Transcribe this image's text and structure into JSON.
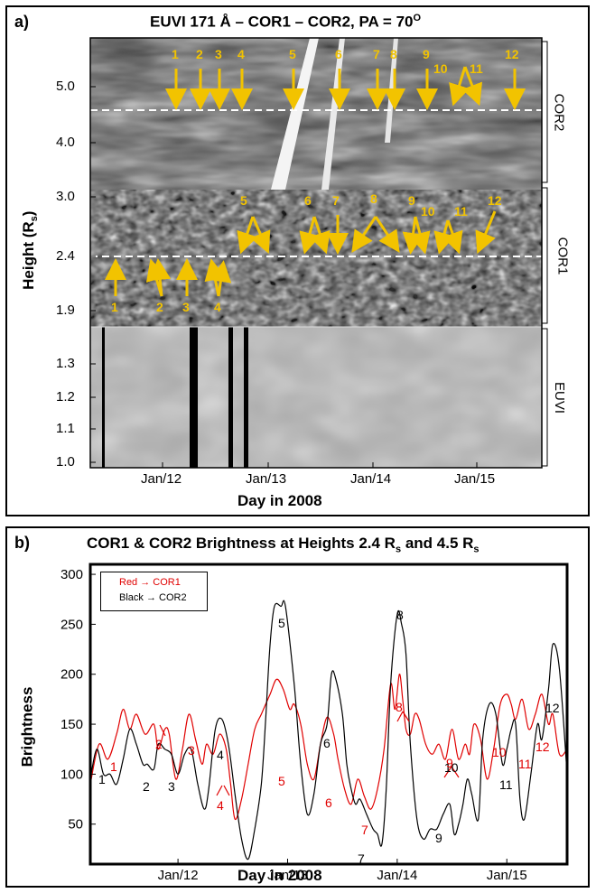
{
  "panel_a": {
    "label": "a)",
    "title_main": "EUVI 171 Å – COR1 – COR2, PA = 70",
    "title_sup": "O",
    "ylabel_main": "Height (R",
    "ylabel_sub": "s",
    "ylabel_close": ")",
    "xlabel": "Day in 2008",
    "yticks": [
      "5.0",
      "4.0",
      "3.0",
      "2.4",
      "1.9",
      "1.3",
      "1.2",
      "1.1",
      "1.0"
    ],
    "xticks": [
      "Jan/12",
      "Jan/13",
      "Jan/14",
      "Jan/15"
    ],
    "instruments": [
      "COR2",
      "COR1",
      "EUVI"
    ],
    "cor2_labels": [
      "1",
      "2",
      "3",
      "4",
      "5",
      "6",
      "7",
      "8",
      "9",
      "10",
      "11",
      "12"
    ],
    "cor1_upper_labels": [
      "5",
      "6",
      "7",
      "8",
      "9",
      "10",
      "11",
      "12"
    ],
    "cor1_lower_labels": [
      "1",
      "2",
      "3",
      "4"
    ],
    "annotation_color": "#f2c300"
  },
  "panel_b": {
    "label": "b)",
    "title_pre": "COR1 & COR2 Brightness at Heights 2.4 R",
    "title_sub1": "s",
    "title_mid": " and 4.5 R",
    "title_sub2": "s",
    "legend_red": "Red → COR1",
    "legend_black": "Black → COR2",
    "ylabel": "Brightness",
    "xlabel": "Day in 2008",
    "peak_labels_black": [
      "1",
      "2",
      "3",
      "4",
      "5",
      "6",
      "7",
      "8",
      "9",
      "10",
      "11",
      "12"
    ],
    "peak_labels_red": [
      "1",
      "2",
      "3",
      "4",
      "5",
      "6",
      "7",
      "8",
      "9",
      "10",
      "11",
      "12"
    ]
  },
  "chart_data": {
    "type": "line",
    "title": "COR1 & COR2 Brightness at Heights 2.4 Rs and 4.5 Rs",
    "xlabel": "Day in 2008",
    "ylabel": "Brightness",
    "xticks": [
      "Jan/12",
      "Jan/13",
      "Jan/14",
      "Jan/15"
    ],
    "yticks": [
      50,
      100,
      150,
      200,
      250,
      300
    ],
    "ylim": [
      10,
      310
    ],
    "xlim": [
      11.2,
      15.55
    ],
    "legend": "top-left",
    "series": [
      {
        "name": "COR1",
        "color": "#e00000",
        "x": [
          11.2,
          11.28,
          11.36,
          11.44,
          11.5,
          11.56,
          11.62,
          11.7,
          11.78,
          11.82,
          11.88,
          11.92,
          11.98,
          12.04,
          12.1,
          12.16,
          12.22,
          12.26,
          12.32,
          12.38,
          12.44,
          12.48,
          12.52,
          12.58,
          12.64,
          12.7,
          12.76,
          12.84,
          12.9,
          12.96,
          13.02,
          13.06,
          13.12,
          13.18,
          13.24,
          13.3,
          13.36,
          13.42,
          13.46,
          13.52,
          13.58,
          13.64,
          13.7,
          13.76,
          13.82,
          13.88,
          13.94,
          13.98,
          14.02,
          14.05,
          14.08,
          14.12,
          14.16,
          14.2,
          14.26,
          14.32,
          14.38,
          14.44,
          14.5,
          14.56,
          14.62,
          14.66,
          14.7,
          14.76,
          14.82,
          14.88,
          14.94,
          15.0,
          15.04,
          15.08,
          15.14,
          15.2,
          15.26,
          15.32,
          15.38,
          15.42,
          15.48,
          15.55
        ],
        "values": [
          90,
          130,
          115,
          140,
          165,
          145,
          160,
          140,
          150,
          125,
          145,
          140,
          95,
          125,
          160,
          135,
          110,
          130,
          120,
          140,
          125,
          90,
          55,
          75,
          110,
          145,
          160,
          180,
          195,
          185,
          165,
          170,
          150,
          110,
          95,
          130,
          157,
          140,
          115,
          85,
          70,
          95,
          78,
          65,
          85,
          125,
          190,
          165,
          200,
          175,
          145,
          140,
          160,
          155,
          130,
          120,
          130,
          115,
          145,
          115,
          130,
          120,
          150,
          135,
          95,
          125,
          170,
          180,
          170,
          155,
          175,
          145,
          160,
          180,
          150,
          160,
          120,
          125
        ]
      },
      {
        "name": "COR2",
        "color": "#000000",
        "x": [
          11.2,
          11.26,
          11.32,
          11.38,
          11.44,
          11.5,
          11.56,
          11.62,
          11.68,
          11.72,
          11.78,
          11.82,
          11.88,
          11.94,
          12.0,
          12.06,
          12.12,
          12.18,
          12.24,
          12.28,
          12.34,
          12.4,
          12.46,
          12.52,
          12.58,
          12.64,
          12.7,
          12.76,
          12.8,
          12.84,
          12.88,
          12.94,
          12.98,
          13.06,
          13.12,
          13.18,
          13.24,
          13.3,
          13.36,
          13.4,
          13.44,
          13.5,
          13.54,
          13.58,
          13.62,
          13.66,
          13.72,
          13.78,
          13.82,
          13.86,
          13.9,
          13.94,
          14.0,
          14.04,
          14.08,
          14.12,
          14.18,
          14.24,
          14.3,
          14.36,
          14.42,
          14.48,
          14.52,
          14.56,
          14.6,
          14.64,
          14.68,
          14.74,
          14.78,
          14.84,
          14.9,
          14.96,
          15.0,
          15.04,
          15.08,
          15.12,
          15.16,
          15.22,
          15.28,
          15.32,
          15.38,
          15.42,
          15.48,
          15.55
        ],
        "values": [
          95,
          125,
          100,
          100,
          90,
          115,
          145,
          130,
          110,
          110,
          105,
          130,
          125,
          120,
          100,
          120,
          125,
          90,
          65,
          85,
          145,
          155,
          130,
          80,
          35,
          15,
          45,
          90,
          155,
          230,
          268,
          268,
          268,
          190,
          110,
          60,
          80,
          130,
          150,
          200,
          195,
          160,
          110,
          85,
          70,
          75,
          60,
          45,
          40,
          30,
          85,
          190,
          260,
          250,
          220,
          130,
          55,
          35,
          45,
          45,
          60,
          70,
          40,
          50,
          70,
          95,
          80,
          55,
          135,
          170,
          160,
          110,
          125,
          145,
          150,
          75,
          55,
          100,
          150,
          135,
          185,
          230,
          205,
          100
        ]
      }
    ]
  }
}
